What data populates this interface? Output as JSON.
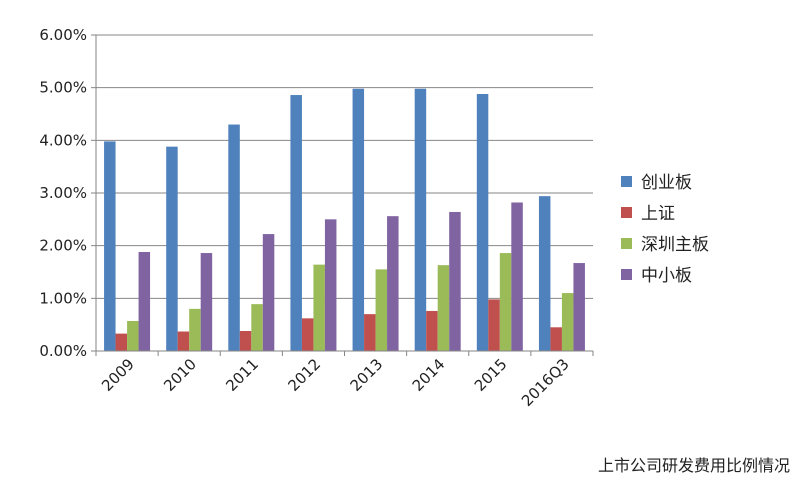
{
  "chart_data": {
    "type": "bar",
    "title": "",
    "xlabel": "",
    "ylabel": "",
    "ylim": [
      0,
      6
    ],
    "y_unit": "%",
    "y_ticks": [
      "0.00%",
      "1.00%",
      "2.00%",
      "3.00%",
      "4.00%",
      "5.00%",
      "6.00%"
    ],
    "grid": "horizontal",
    "legend_position": "right",
    "categories": [
      "2009",
      "2010",
      "2011",
      "2012",
      "2013",
      "2014",
      "2015",
      "2016Q3"
    ],
    "series": [
      {
        "name": "创业板",
        "color": "#4F81BD",
        "values": [
          3.98,
          3.88,
          4.3,
          4.86,
          4.98,
          4.98,
          4.88,
          2.94
        ]
      },
      {
        "name": "上证",
        "color": "#C0504D",
        "values": [
          0.33,
          0.37,
          0.38,
          0.62,
          0.7,
          0.76,
          0.98,
          0.45
        ]
      },
      {
        "name": "深圳主板",
        "color": "#9BBB59",
        "values": [
          0.57,
          0.8,
          0.89,
          1.64,
          1.55,
          1.63,
          1.86,
          1.1
        ]
      },
      {
        "name": "中小板",
        "color": "#8064A2",
        "values": [
          1.88,
          1.86,
          2.22,
          2.5,
          2.56,
          2.64,
          2.82,
          1.67
        ]
      }
    ]
  },
  "caption": "上市公司研发费用比例情况"
}
